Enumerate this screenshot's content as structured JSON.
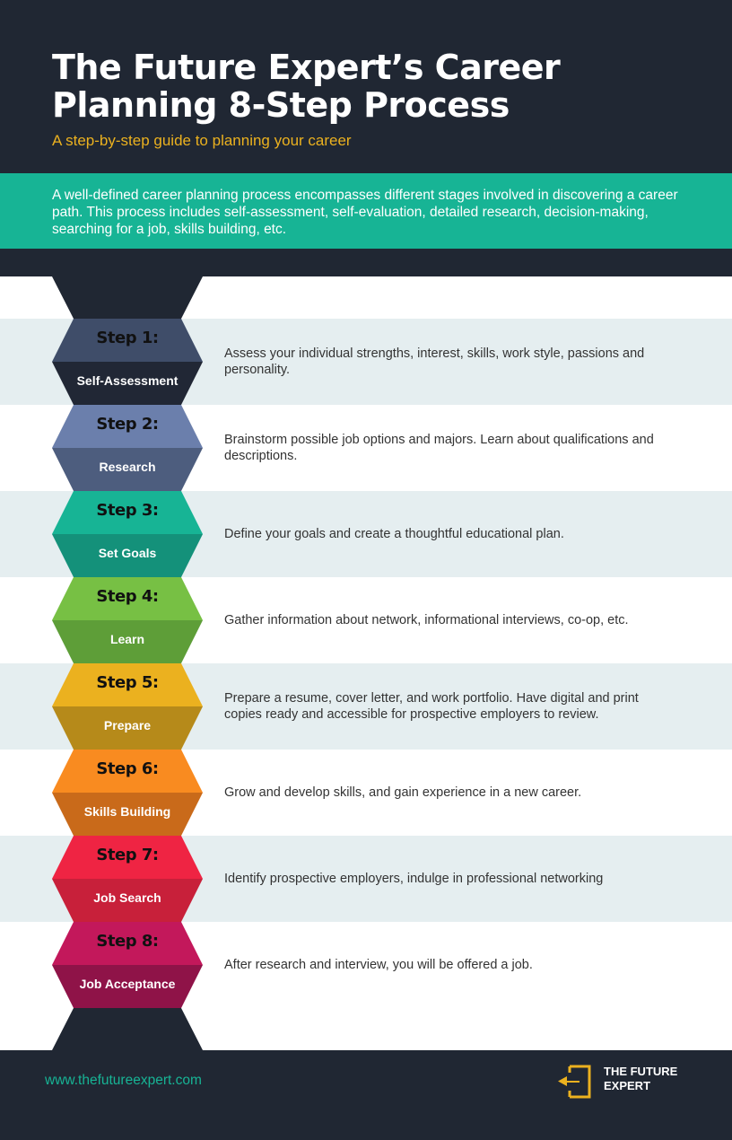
{
  "header": {
    "title": "The Future Expert’s Career Planning 8-Step Process",
    "subtitle": "A step-by-step guide to planning your career"
  },
  "intro": "A well-defined career planning process encompasses different stages involved in discovering a career path. This process includes self-assessment, self-evaluation, detailed research, decision-making, searching for a job, skills building, etc.",
  "colors": {
    "dark": "#202733",
    "teal": "#17b495",
    "gold": "#ebb11f",
    "row_alt": "#e5eef0"
  },
  "steps": [
    {
      "label": "Step 1:",
      "name": "Self-Assessment",
      "desc": "Assess your individual strengths, interest, skills, work style, passions and personality.",
      "top": "#3f4d69",
      "bottom": "#212735"
    },
    {
      "label": "Step 2:",
      "name": "Research",
      "desc": "Brainstorm possible job options and majors. Learn about qualifications and descriptions.",
      "top": "#6b7fac",
      "bottom": "#4d5d7e"
    },
    {
      "label": "Step 3:",
      "name": "Set Goals",
      "desc": "Define your goals and create a thoughtful educational plan.",
      "top": "#17b495",
      "bottom": "#14917a"
    },
    {
      "label": "Step 4:",
      "name": "Learn",
      "desc": "Gather information about network, informational interviews, co-op, etc.",
      "top": "#77c044",
      "bottom": "#5e9e38"
    },
    {
      "label": "Step 5:",
      "name": "Prepare",
      "desc": "Prepare a resume, cover letter, and work portfolio. Have digital and print copies ready and accessible for prospective employers to review.",
      "top": "#ebb11f",
      "bottom": "#b68a1a"
    },
    {
      "label": "Step 6:",
      "name": "Skills Building",
      "desc": "Grow and develop skills, and gain experience in a new career.",
      "top": "#f98b20",
      "bottom": "#c96a1a"
    },
    {
      "label": "Step 7:",
      "name": "Job Search",
      "desc": "Identify prospective employers, indulge in professional networking",
      "top": "#ef2443",
      "bottom": "#c8203a"
    },
    {
      "label": "Step 8:",
      "name": "Job Acceptance",
      "desc": "After research and interview, you will be offered a job.",
      "top": "#c3185b",
      "bottom": "#8f1348"
    }
  ],
  "footer": {
    "url": "www.thefutureexpert.com",
    "brand_line1": "THE FUTURE",
    "brand_line2": "EXPERT",
    "logo_icon": "exit-arrow-icon"
  }
}
